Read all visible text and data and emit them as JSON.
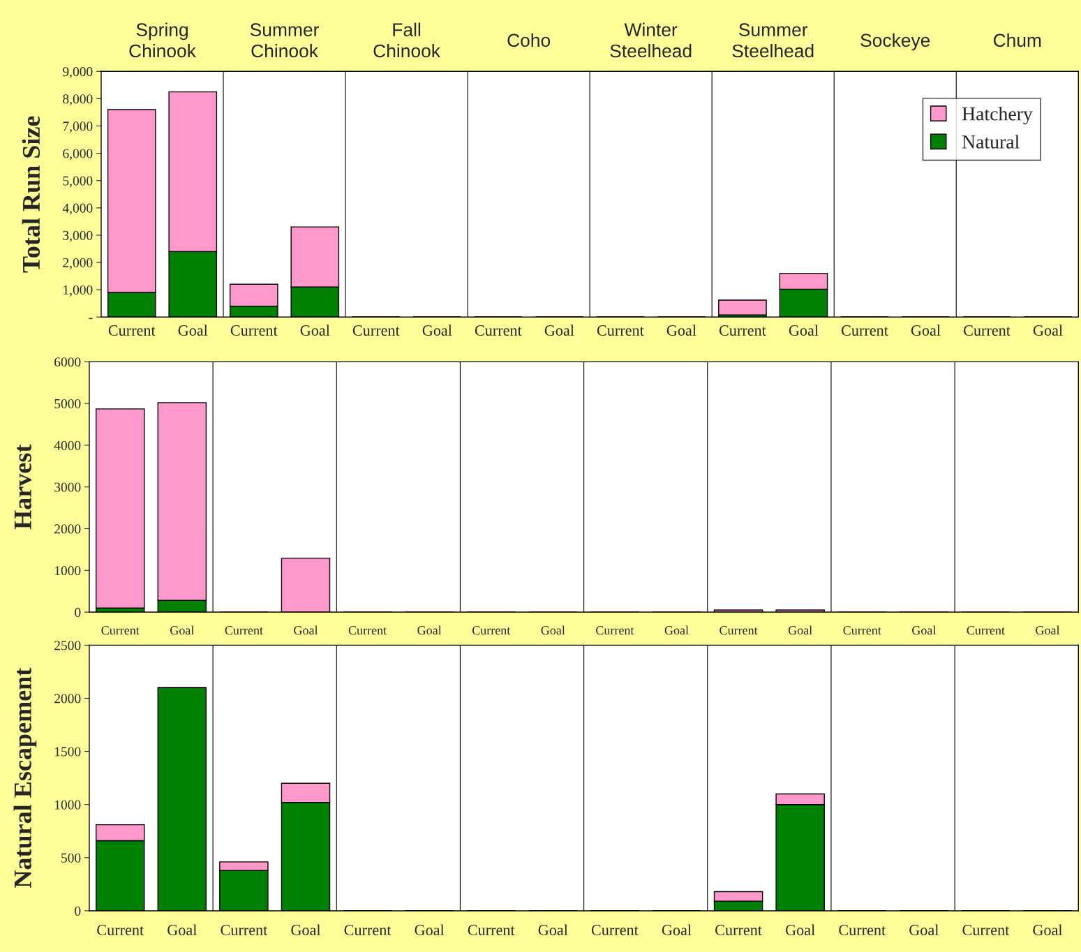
{
  "chart_data": [
    {
      "type": "bar",
      "stacked": true,
      "ylabel": "Total Run Size",
      "categories": [
        "Current",
        "Goal",
        "Current",
        "Goal",
        "Current",
        "Goal",
        "Current",
        "Goal",
        "Current",
        "Goal",
        "Current",
        "Goal",
        "Current",
        "Goal",
        "Current",
        "Goal"
      ],
      "annotations": [
        "Spring\nChinook",
        "Summer\nChinook",
        "Fall\nChinook",
        "Coho",
        "Winter\nSteelhead",
        "Summer\nSteelhead",
        "Sockeye",
        "Chum"
      ],
      "series": [
        {
          "name": "Natural",
          "color": "#008000",
          "values": [
            900,
            2400,
            400,
            1100,
            null,
            null,
            null,
            null,
            null,
            null,
            80,
            1020,
            null,
            null,
            null,
            null
          ]
        },
        {
          "name": "Hatchery",
          "color": "#ff99cc",
          "values": [
            6700,
            5850,
            800,
            2200,
            null,
            null,
            null,
            null,
            null,
            null,
            540,
            580,
            null,
            null,
            null,
            null
          ]
        }
      ],
      "ylim": [
        0,
        9000
      ],
      "yticks": [
        {
          "value": 0,
          "label": "-"
        },
        {
          "value": 1000,
          "label": "1,000"
        },
        {
          "value": 2000,
          "label": "2,000"
        },
        {
          "value": 3000,
          "label": "3,000"
        },
        {
          "value": 4000,
          "label": "4,000"
        },
        {
          "value": 5000,
          "label": "5,000"
        },
        {
          "value": 6000,
          "label": "6,000"
        },
        {
          "value": 7000,
          "label": "7,000"
        },
        {
          "value": 8000,
          "label": "8,000"
        },
        {
          "value": 9000,
          "label": "9,000"
        }
      ],
      "legend": "top right"
    },
    {
      "type": "bar",
      "stacked": true,
      "ylabel": "Harvest",
      "categories": [
        "Current",
        "Goal",
        "Current",
        "Goal",
        "Current",
        "Goal",
        "Current",
        "Goal",
        "Current",
        "Goal",
        "Current",
        "Goal",
        "Current",
        "Goal",
        "Current",
        "Goal"
      ],
      "series": [
        {
          "color": "#008000",
          "values": [
            100,
            280,
            null,
            null,
            null,
            null,
            null,
            null,
            null,
            null,
            null,
            null,
            null,
            null,
            null,
            null
          ]
        },
        {
          "color": "#ff99cc",
          "values": [
            4770,
            4740,
            null,
            1290,
            null,
            null,
            null,
            null,
            null,
            null,
            50,
            50,
            null,
            null,
            null,
            null
          ]
        }
      ],
      "ylim": [
        0,
        6000
      ],
      "yticks": [
        0,
        1000,
        2000,
        3000,
        4000,
        5000,
        6000
      ]
    },
    {
      "type": "bar",
      "stacked": true,
      "ylabel": "Natural Escapement",
      "categories": [
        "Current",
        "Goal",
        "Current",
        "Goal",
        "Current",
        "Goal",
        "Current",
        "Goal",
        "Current",
        "Goal",
        "Current",
        "Goal",
        "Current",
        "Goal",
        "Current",
        "Goal"
      ],
      "series": [
        {
          "color": "#008000",
          "values": [
            660,
            2100,
            380,
            1020,
            null,
            null,
            null,
            null,
            null,
            null,
            90,
            1000,
            null,
            null,
            null,
            null
          ]
        },
        {
          "color": "#ff99cc",
          "values": [
            150,
            null,
            80,
            180,
            null,
            null,
            null,
            null,
            null,
            null,
            90,
            100,
            null,
            null,
            null,
            null
          ]
        }
      ],
      "ylim": [
        0,
        2500
      ],
      "yticks": [
        0,
        500,
        1000,
        1500,
        2000,
        2500
      ]
    }
  ]
}
